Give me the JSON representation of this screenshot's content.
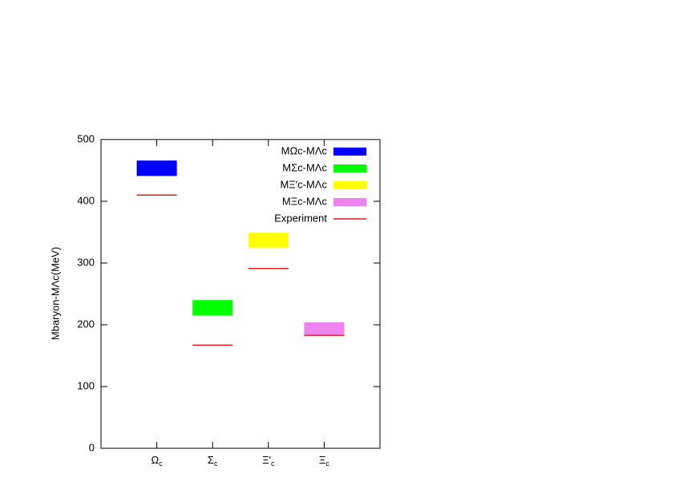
{
  "chart_data": {
    "type": "range",
    "y_label": "Mbaryon-MΛc(MeV)",
    "categories": [
      [
        "Ω",
        "c"
      ],
      [
        "Σ",
        "c"
      ],
      [
        "Ξ′",
        "c"
      ],
      [
        "Ξ",
        "c"
      ]
    ],
    "ylim": [
      0,
      500
    ],
    "yticks": [
      0,
      100,
      200,
      300,
      400,
      500
    ],
    "legend": "top-right",
    "series": [
      {
        "name": "MΩc-MΛc",
        "color": "#0000ff",
        "low": [
          441,
          null,
          null,
          null
        ],
        "high": [
          466,
          null,
          null,
          null
        ]
      },
      {
        "name": "MΣc-MΛc",
        "color": "#00ff00",
        "low": [
          null,
          215,
          null,
          null
        ],
        "high": [
          null,
          240,
          null,
          null
        ]
      },
      {
        "name": "MΞ′c-MΛc",
        "color": "#ffff00",
        "low": [
          null,
          null,
          325,
          null
        ],
        "high": [
          null,
          null,
          349,
          null
        ]
      },
      {
        "name": "MΞc-MΛc",
        "color": "#ee82ee",
        "low": [
          null,
          null,
          null,
          184
        ],
        "high": [
          null,
          null,
          null,
          204
        ]
      },
      {
        "name": "Experiment",
        "color": "#e41a1c",
        "values": [
          410,
          167,
          291,
          183
        ]
      }
    ]
  }
}
